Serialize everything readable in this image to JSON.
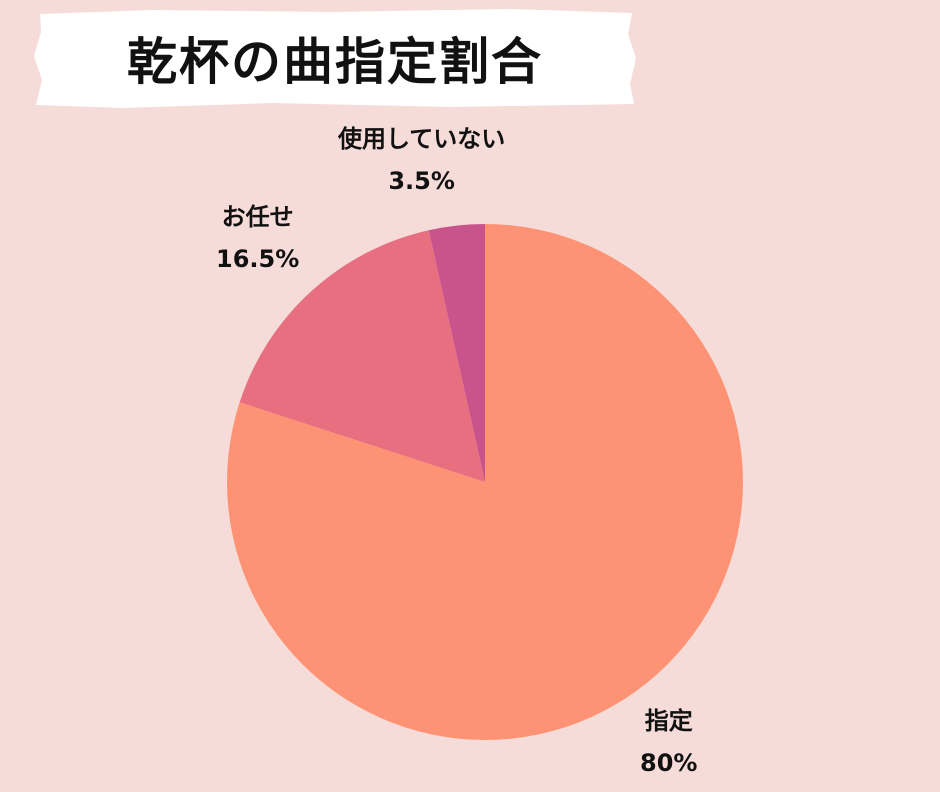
{
  "title": "乾杯の曲指定割合",
  "chart_data": {
    "type": "pie",
    "title": "乾杯の曲指定割合",
    "slices": [
      {
        "label": "指定",
        "value": 80,
        "value_label": "80%",
        "color": "#fd9374"
      },
      {
        "label": "お任せ",
        "value": 16.5,
        "value_label": "16.5%",
        "color": "#e76f7f"
      },
      {
        "label": "使用していない",
        "value": 3.5,
        "value_label": "3.5%",
        "color": "#c9548b"
      }
    ],
    "start": "12 o'clock",
    "direction": "clockwise"
  }
}
